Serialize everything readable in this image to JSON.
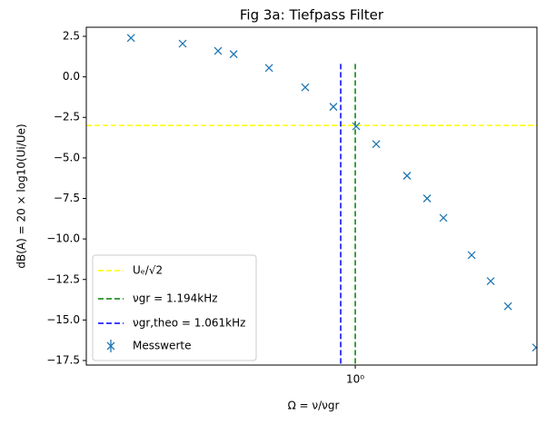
{
  "chart_data": {
    "type": "scatter",
    "title": "Fig 3a: Tiefpass Filter",
    "x_label": "Ω = ν/νgr",
    "y_label": "dB(A) = 20 × log10(Ui/Ue)",
    "xscale": "log",
    "xlim": [
      0.256,
      2.51
    ],
    "ylim": [
      -17.78,
      3.06
    ],
    "xticks": [
      {
        "value": 1,
        "label": "10⁰"
      }
    ],
    "yticks": [
      2.5,
      {
        "value": 0,
        "label": "0.0"
      },
      {
        "value": -2.5,
        "label": "−2.5"
      },
      {
        "value": -5,
        "label": "−5.0"
      },
      {
        "value": -7.5,
        "label": "−7.5"
      },
      {
        "value": -10,
        "label": "−10.0"
      },
      {
        "value": -12.5,
        "label": "−12.5"
      },
      {
        "value": -15,
        "label": "−15.0"
      },
      {
        "value": -17.5,
        "label": "−17.5"
      }
    ],
    "ref_lines": [
      {
        "name": "Uₑ/√2",
        "color": "#ffff00",
        "orientation": "h",
        "value": -3
      },
      {
        "name": "νgr = 1.194kHz",
        "color": "#008000",
        "orientation": "v",
        "value": 1.0
      },
      {
        "name": "νgr,theo = 1.061kHz",
        "color": "#0000ff",
        "orientation": "v",
        "value": 0.929
      }
    ],
    "series": [
      {
        "name": "Messwerte",
        "color": "#1f77b4",
        "x": [
          0.321,
          0.417,
          0.499,
          0.54,
          0.646,
          0.776,
          0.895,
          1.005,
          1.112,
          1.3,
          1.439,
          1.563,
          1.803,
          1.986,
          2.168,
          2.5
        ],
        "values": [
          2.4,
          2.05,
          1.6,
          1.4,
          0.55,
          -0.65,
          -1.85,
          -3.05,
          -4.15,
          -6.1,
          -7.5,
          -8.7,
          -11.0,
          -12.6,
          -14.15,
          -16.7
        ]
      }
    ]
  }
}
